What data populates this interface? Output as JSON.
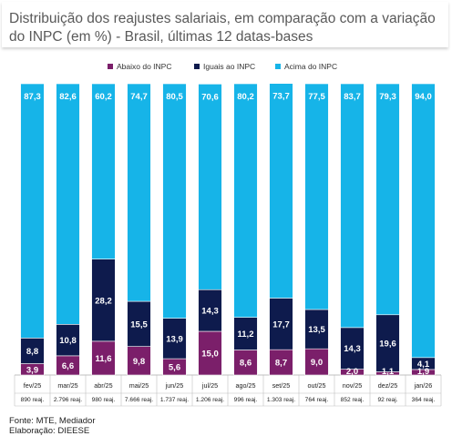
{
  "title": "Distribuição dos reajustes salariais, em comparação com a variação do INPC (em %) - Brasil, últimas 12 datas-bases",
  "footer": {
    "source": "Fonte: MTE, Mediador",
    "elaboration": "Elaboração: DIEESE"
  },
  "colors": {
    "below": "#7b1f6a",
    "equal": "#0e1b4d",
    "above": "#16b4e8",
    "below_label": "#ffffff",
    "equal_label": "#ffffff",
    "above_label": "#ffffff"
  },
  "chart_data": {
    "type": "bar",
    "stacked": true,
    "normalized": true,
    "legend_position": "top",
    "grid": false,
    "categories": [
      "fev/25",
      "mar/25",
      "abr/25",
      "mai/25",
      "jun/25",
      "jul/25",
      "ago/25",
      "set/25",
      "out/25",
      "nov/25",
      "dez/25",
      "jan/26"
    ],
    "sublabels": [
      "890 reaj.",
      "2.796 reaj.",
      "980 reaj.",
      "7.666 reaj.",
      "1.737 reaj.",
      "1.206 reaj.",
      "996 reaj.",
      "1.303 reaj.",
      "764 reaj.",
      "852 reaj.",
      "92 reaj.",
      "364 reaj."
    ],
    "series": [
      {
        "name": "Abaixo do INPC",
        "values": [
          3.9,
          6.6,
          11.6,
          9.8,
          5.6,
          15.0,
          8.6,
          8.7,
          9.0,
          2.0,
          1.1,
          1.9
        ]
      },
      {
        "name": "Iguais ao INPC",
        "values": [
          8.8,
          10.8,
          28.2,
          15.5,
          13.9,
          14.3,
          11.2,
          17.7,
          13.5,
          14.3,
          19.6,
          4.1
        ]
      },
      {
        "name": "Acima do INPC",
        "values": [
          87.3,
          82.6,
          60.2,
          74.7,
          80.5,
          70.6,
          80.2,
          73.7,
          77.5,
          83.7,
          79.3,
          94.0
        ]
      }
    ],
    "ylim": [
      0,
      100
    ]
  }
}
